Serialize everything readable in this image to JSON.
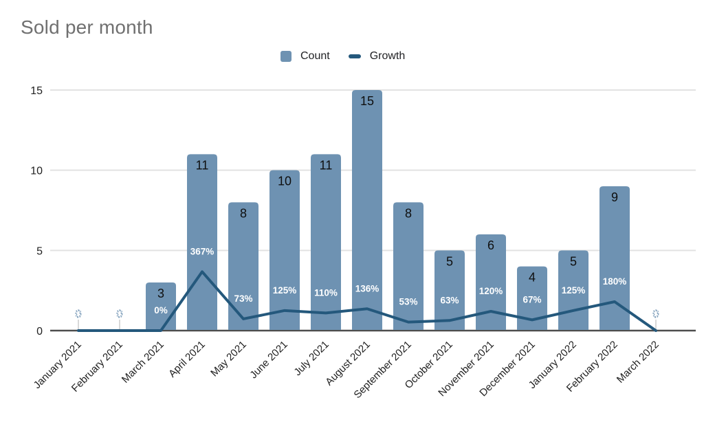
{
  "title": "Sold per month",
  "legend": {
    "count_label": "Count",
    "growth_label": "Growth"
  },
  "colors": {
    "bar": "#6e92b2",
    "line": "#24587c",
    "title_text": "#707070",
    "grid": "#e2e2e2",
    "axis_line": "#4d4d4d",
    "tick_text": "#1f1f1f",
    "bar_value_label": "#0f0f0f",
    "percent_label": "#ffffff",
    "zero_marker_stem": "#d8d8d8"
  },
  "chart_data": {
    "type": "bar",
    "combo": "bar series + line series on shared value axis (line plotted as percent/100)",
    "title": "Sold per month",
    "categories": [
      "January 2021",
      "February 2021",
      "March 2021",
      "April 2021",
      "May 2021",
      "June 2021",
      "July 2021",
      "August 2021",
      "September 2021",
      "October 2021",
      "November 2021",
      "December 2021",
      "January 2022",
      "February 2022",
      "March 2022"
    ],
    "series": [
      {
        "name": "Count",
        "type": "bar",
        "values": [
          0,
          0,
          3,
          11,
          8,
          10,
          11,
          15,
          8,
          5,
          6,
          4,
          5,
          9,
          0
        ]
      },
      {
        "name": "Growth",
        "type": "line",
        "values_percent": [
          0,
          0,
          0,
          367,
          73,
          125,
          110,
          136,
          53,
          63,
          120,
          67,
          125,
          180,
          0
        ],
        "data_labels": [
          "",
          "",
          "0%",
          "367%",
          "73%",
          "125%",
          "110%",
          "136%",
          "53%",
          "63%",
          "120%",
          "67%",
          "125%",
          "180%",
          ""
        ]
      }
    ],
    "y_ticks": [
      0,
      5,
      10,
      15
    ],
    "ylim": [
      0,
      15
    ],
    "xlabel": "",
    "ylabel": "",
    "grid": true,
    "legend_position": "top",
    "x_label_rotation_deg": -45,
    "zero_value_marker": "dashed light-blue 0 with stem at January 2021, February 2021, March 2022"
  }
}
